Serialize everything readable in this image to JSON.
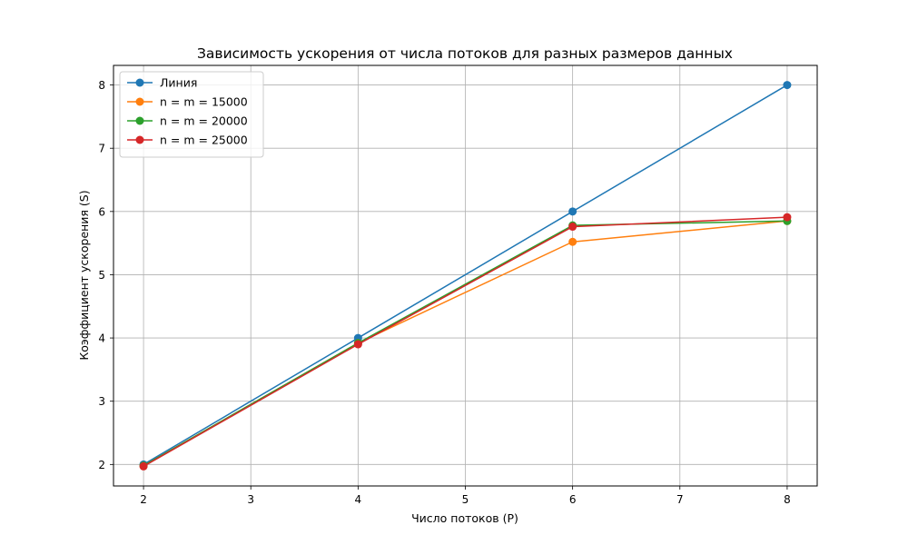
{
  "chart_data": {
    "type": "line",
    "title": "Зависимость ускорения от числа потоков для разных размеров данных",
    "xlabel": "Число потоков (P)",
    "ylabel": "Коэффициент ускорения (S)",
    "xlim": [
      1.72,
      8.28
    ],
    "ylim": [
      1.66,
      8.31
    ],
    "xticks": [
      2,
      3,
      4,
      5,
      6,
      7,
      8
    ],
    "yticks": [
      2,
      3,
      4,
      5,
      6,
      7,
      8
    ],
    "grid": true,
    "legend_position": "top-left",
    "x": [
      2,
      4,
      6,
      8
    ],
    "series": [
      {
        "name": "Линия",
        "color": "#1f77b4",
        "values": [
          2,
          4,
          6,
          8
        ]
      },
      {
        "name": "n = m = 15000",
        "color": "#ff7f0e",
        "values": [
          1.98,
          3.92,
          5.52,
          5.85
        ]
      },
      {
        "name": "n = m = 20000",
        "color": "#2ca02c",
        "values": [
          1.98,
          3.92,
          5.78,
          5.85
        ]
      },
      {
        "name": "n = m = 25000",
        "color": "#d62728",
        "values": [
          1.97,
          3.9,
          5.76,
          5.91
        ]
      }
    ]
  }
}
